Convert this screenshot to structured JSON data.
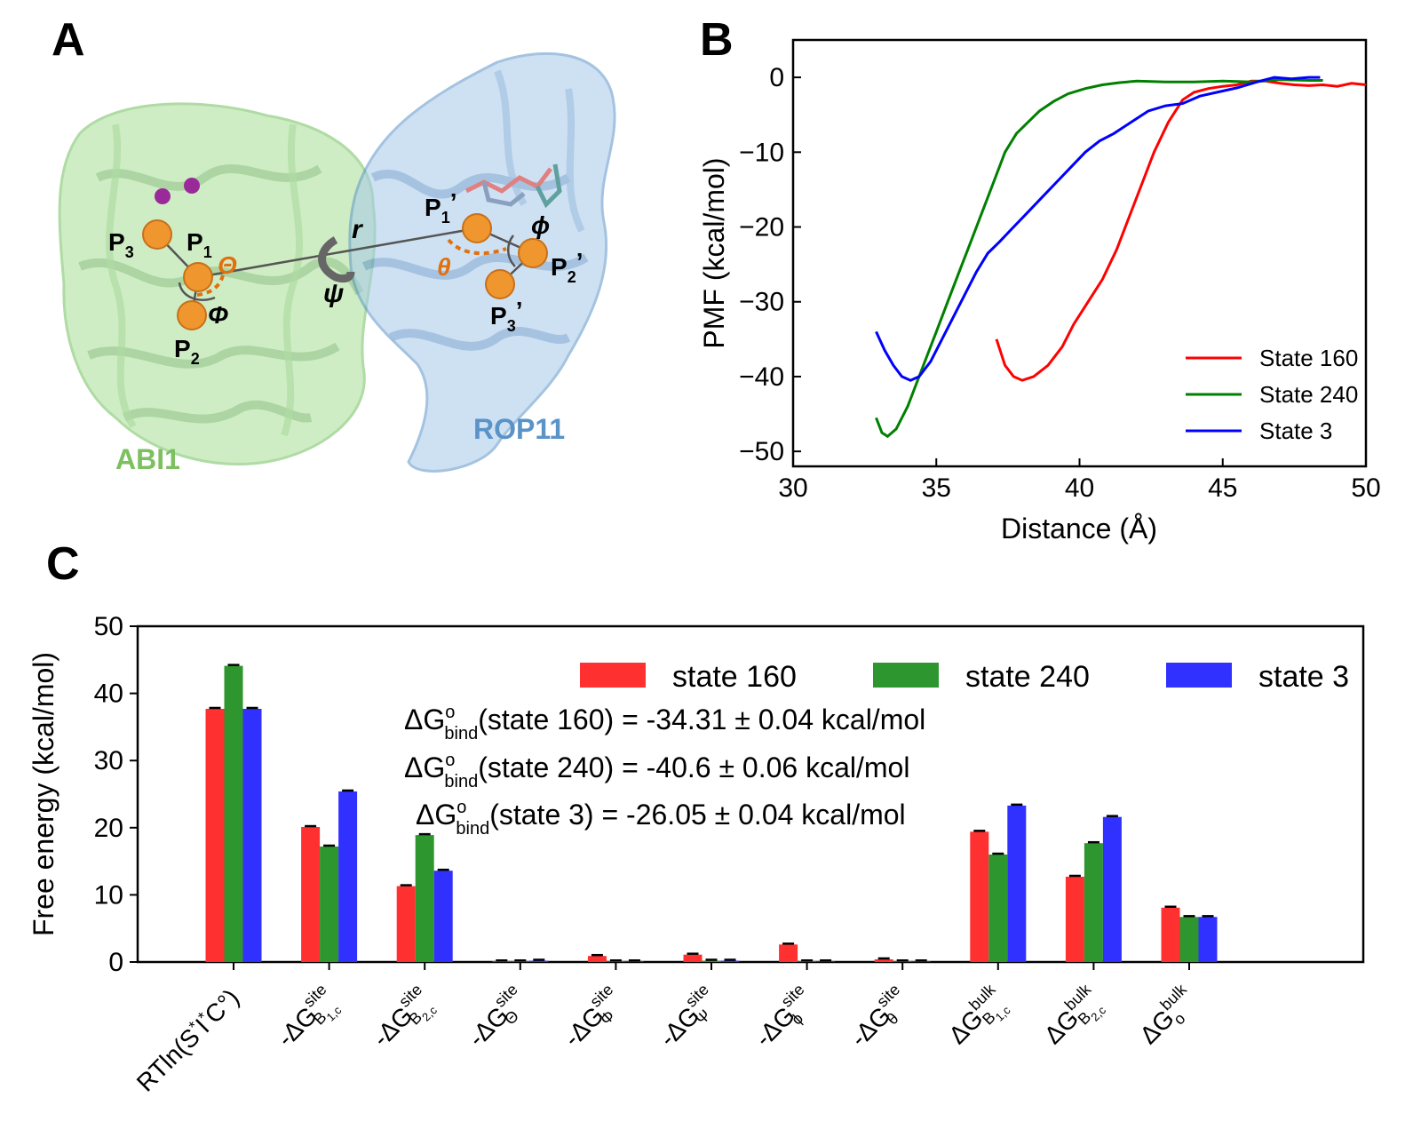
{
  "panels": {
    "a": "A",
    "b": "B",
    "c": "C"
  },
  "panel_a": {
    "protein_left": "ABI1",
    "protein_right": "ROP11",
    "colors": {
      "abi1": "#8fd17a",
      "rop11": "#7fb0dc",
      "bead": "#f0962e",
      "angle": "#e07010",
      "ion": "#9a2a9a"
    },
    "labels": {
      "p1": "P",
      "p1_sub": "1",
      "p2": "P",
      "p2_sub": "2",
      "p3": "P",
      "p3_sub": "3",
      "p1p": "P",
      "p1p_sub": "1",
      "p1p_prime": "’",
      "p2p": "P",
      "p2p_sub": "2",
      "p2p_prime": "’",
      "p3p": "P",
      "p3p_sub": "3",
      "p3p_prime": "’",
      "r": "r",
      "psi": "ψ",
      "theta_left": "Θ",
      "phi_left": "Φ",
      "theta_right": "θ",
      "phi_right": "ϕ"
    }
  },
  "chart_data": [
    {
      "type": "line",
      "xlabel": "Distance (Å)",
      "ylabel": "PMF (kcal/mol)",
      "xlim": [
        30,
        50
      ],
      "ylim": [
        -52,
        5
      ],
      "xticks": [
        30,
        35,
        40,
        45,
        50
      ],
      "yticks": [
        0,
        -10,
        -20,
        -30,
        -40,
        -50
      ],
      "tick_labels_x": [
        "30",
        "35",
        "40",
        "45",
        "50"
      ],
      "tick_labels_y": [
        "0",
        "−10",
        "−20",
        "−30",
        "−40",
        "−50"
      ],
      "legend_position": "lower-right",
      "series": [
        {
          "name": "State 160",
          "color": "#ff0000",
          "x": [
            37.1,
            37.4,
            37.7,
            38.0,
            38.4,
            38.9,
            39.4,
            39.8,
            40.3,
            40.8,
            41.3,
            41.7,
            42.2,
            42.6,
            43.1,
            43.6,
            44.0,
            44.5,
            45.0,
            45.5,
            46.0,
            46.5,
            47.0,
            47.5,
            48.0,
            48.5,
            49.0,
            49.5,
            50.0
          ],
          "y": [
            -35,
            -38.5,
            -40,
            -40.5,
            -40,
            -38.5,
            -36,
            -33,
            -30,
            -27,
            -23,
            -19,
            -14,
            -10,
            -6,
            -3,
            -2,
            -1.5,
            -1.2,
            -1.0,
            -0.5,
            -0.5,
            -0.8,
            -1.0,
            -1.1,
            -1.0,
            -1.2,
            -0.8,
            -1.0
          ]
        },
        {
          "name": "State 240",
          "color": "#008000",
          "x": [
            32.9,
            33.1,
            33.3,
            33.6,
            34.0,
            34.5,
            35.0,
            35.4,
            35.8,
            36.2,
            36.6,
            37.0,
            37.4,
            37.8,
            38.2,
            38.6,
            39.1,
            39.6,
            40.2,
            40.8,
            41.4,
            42.0,
            43.0,
            44.0,
            45.0,
            46.0,
            47.0,
            48.0,
            48.5
          ],
          "y": [
            -45.5,
            -47.5,
            -48,
            -47,
            -44,
            -39,
            -34,
            -30,
            -26,
            -22,
            -18,
            -14,
            -10,
            -7.5,
            -6,
            -4.5,
            -3.2,
            -2.2,
            -1.5,
            -1.0,
            -0.7,
            -0.5,
            -0.6,
            -0.6,
            -0.5,
            -0.6,
            -0.3,
            -0.4,
            -0.4
          ]
        },
        {
          "name": "State 3",
          "color": "#0000ff",
          "x": [
            32.9,
            33.2,
            33.5,
            33.8,
            34.1,
            34.4,
            34.8,
            35.2,
            35.6,
            36.0,
            36.4,
            36.8,
            37.2,
            37.7,
            38.2,
            38.7,
            39.2,
            39.7,
            40.2,
            40.7,
            41.2,
            41.8,
            42.4,
            43.0,
            43.6,
            44.2,
            44.8,
            45.5,
            46.2,
            46.8,
            47.4,
            48.0,
            48.4
          ],
          "y": [
            -34,
            -36.5,
            -38.5,
            -40,
            -40.5,
            -40,
            -38,
            -35,
            -32,
            -29,
            -26,
            -23.5,
            -22,
            -20,
            -18,
            -16,
            -14,
            -12,
            -10,
            -8.5,
            -7.5,
            -6,
            -4.5,
            -3.8,
            -3.5,
            -2.5,
            -2.0,
            -1.4,
            -0.6,
            0.0,
            -0.2,
            0.0,
            0.0
          ]
        }
      ]
    },
    {
      "type": "bar",
      "ylabel": "Free energy (kcal/mol)",
      "ylim": [
        0,
        50
      ],
      "yticks": [
        0,
        10,
        20,
        30,
        40,
        50
      ],
      "tick_labels_y": [
        "0",
        "10",
        "20",
        "30",
        "40",
        "50"
      ],
      "legend_position": "top-right",
      "categories": [
        {
          "main": "RTln(S",
          "sup1": "*",
          "mid": "I",
          "sup2": "*",
          "end": "C°)"
        },
        {
          "main": "-ΔG",
          "sup": "site",
          "sub": "B",
          "subsub": "1,c"
        },
        {
          "main": "-ΔG",
          "sup": "site",
          "sub": "B",
          "subsub": "2,c"
        },
        {
          "main": "-ΔG",
          "sup": "site",
          "sub": "Θ",
          "subsub": ""
        },
        {
          "main": "-ΔG",
          "sup": "site",
          "sub": "Φ",
          "subsub": ""
        },
        {
          "main": "-ΔG",
          "sup": "site",
          "sub": "Ψ",
          "subsub": ""
        },
        {
          "main": "-ΔG",
          "sup": "site",
          "sub": "ϕ",
          "subsub": ""
        },
        {
          "main": "-ΔG",
          "sup": "site",
          "sub": "θ",
          "subsub": ""
        },
        {
          "main": "ΔG",
          "sup": "bulk",
          "sub": "B",
          "subsub": "1,c"
        },
        {
          "main": "ΔG",
          "sup": "bulk",
          "sub": "B",
          "subsub": "2,c"
        },
        {
          "main": "ΔG",
          "sup": "bulk",
          "sub": "o",
          "subsub": ""
        }
      ],
      "series": [
        {
          "name": "state 160",
          "color": "#ff3030",
          "values": [
            37.7,
            20.1,
            11.3,
            0.1,
            0.9,
            1.1,
            2.6,
            0.4,
            19.4,
            12.7,
            8.1
          ]
        },
        {
          "name": "state 240",
          "color": "#2e962e",
          "values": [
            44.1,
            17.2,
            18.9,
            0.1,
            0.1,
            0.2,
            0.1,
            0.1,
            16.0,
            17.7,
            6.7
          ]
        },
        {
          "name": "state 3",
          "color": "#3030ff",
          "values": [
            37.7,
            25.4,
            13.6,
            0.2,
            0.1,
            0.2,
            0.1,
            0.1,
            23.3,
            21.6,
            6.7
          ]
        }
      ],
      "annotations": [
        {
          "pre": "ΔG",
          "sup": "o",
          "sub": "bind",
          "text": "(state 160) = -34.31 ± 0.04 kcal/mol"
        },
        {
          "pre": "ΔG",
          "sup": "o",
          "sub": "bind",
          "text": "(state 240) = -40.6 ± 0.06 kcal/mol"
        },
        {
          "pre": "ΔG",
          "sup": "o",
          "sub": "bind",
          "text": "(state 3) = -26.05 ± 0.04 kcal/mol"
        }
      ]
    }
  ]
}
